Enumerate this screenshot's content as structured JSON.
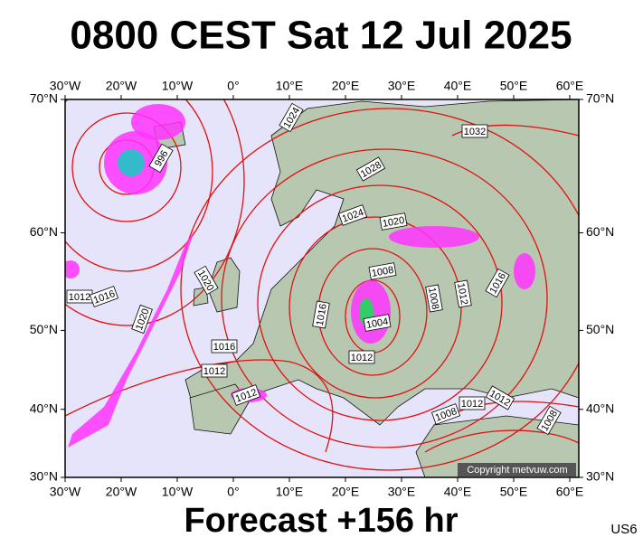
{
  "map": {
    "title": "0800 CEST Sat 12 Jul 2025",
    "subtitle": "Forecast +156 hr",
    "code": "US6",
    "copyright": "Copyright metvuw.com",
    "lon_ticks": [
      {
        "value": -30,
        "label": "30°W"
      },
      {
        "value": -20,
        "label": "20°W"
      },
      {
        "value": -10,
        "label": "10°W"
      },
      {
        "value": 0,
        "label": "0°"
      },
      {
        "value": 10,
        "label": "10°E"
      },
      {
        "value": 20,
        "label": "20°E"
      },
      {
        "value": 30,
        "label": "30°E"
      },
      {
        "value": 40,
        "label": "40°E"
      },
      {
        "value": 50,
        "label": "50°E"
      },
      {
        "value": 60,
        "label": "60°E"
      }
    ],
    "lat_ticks": [
      {
        "value": 70,
        "label": "70°N"
      },
      {
        "value": 60,
        "label": "60°N"
      },
      {
        "value": 50,
        "label": "50°N"
      },
      {
        "value": 40,
        "label": "40°N"
      },
      {
        "value": 30,
        "label": "30°N"
      }
    ],
    "isobar_labels": [
      1024,
      1032,
      996,
      1028,
      1024,
      1020,
      1020,
      1008,
      1012,
      1016,
      1008,
      1012,
      1016,
      1020,
      1016,
      1004,
      1016,
      1012,
      1012,
      1012,
      1008,
      1012,
      1012,
      1008
    ]
  }
}
